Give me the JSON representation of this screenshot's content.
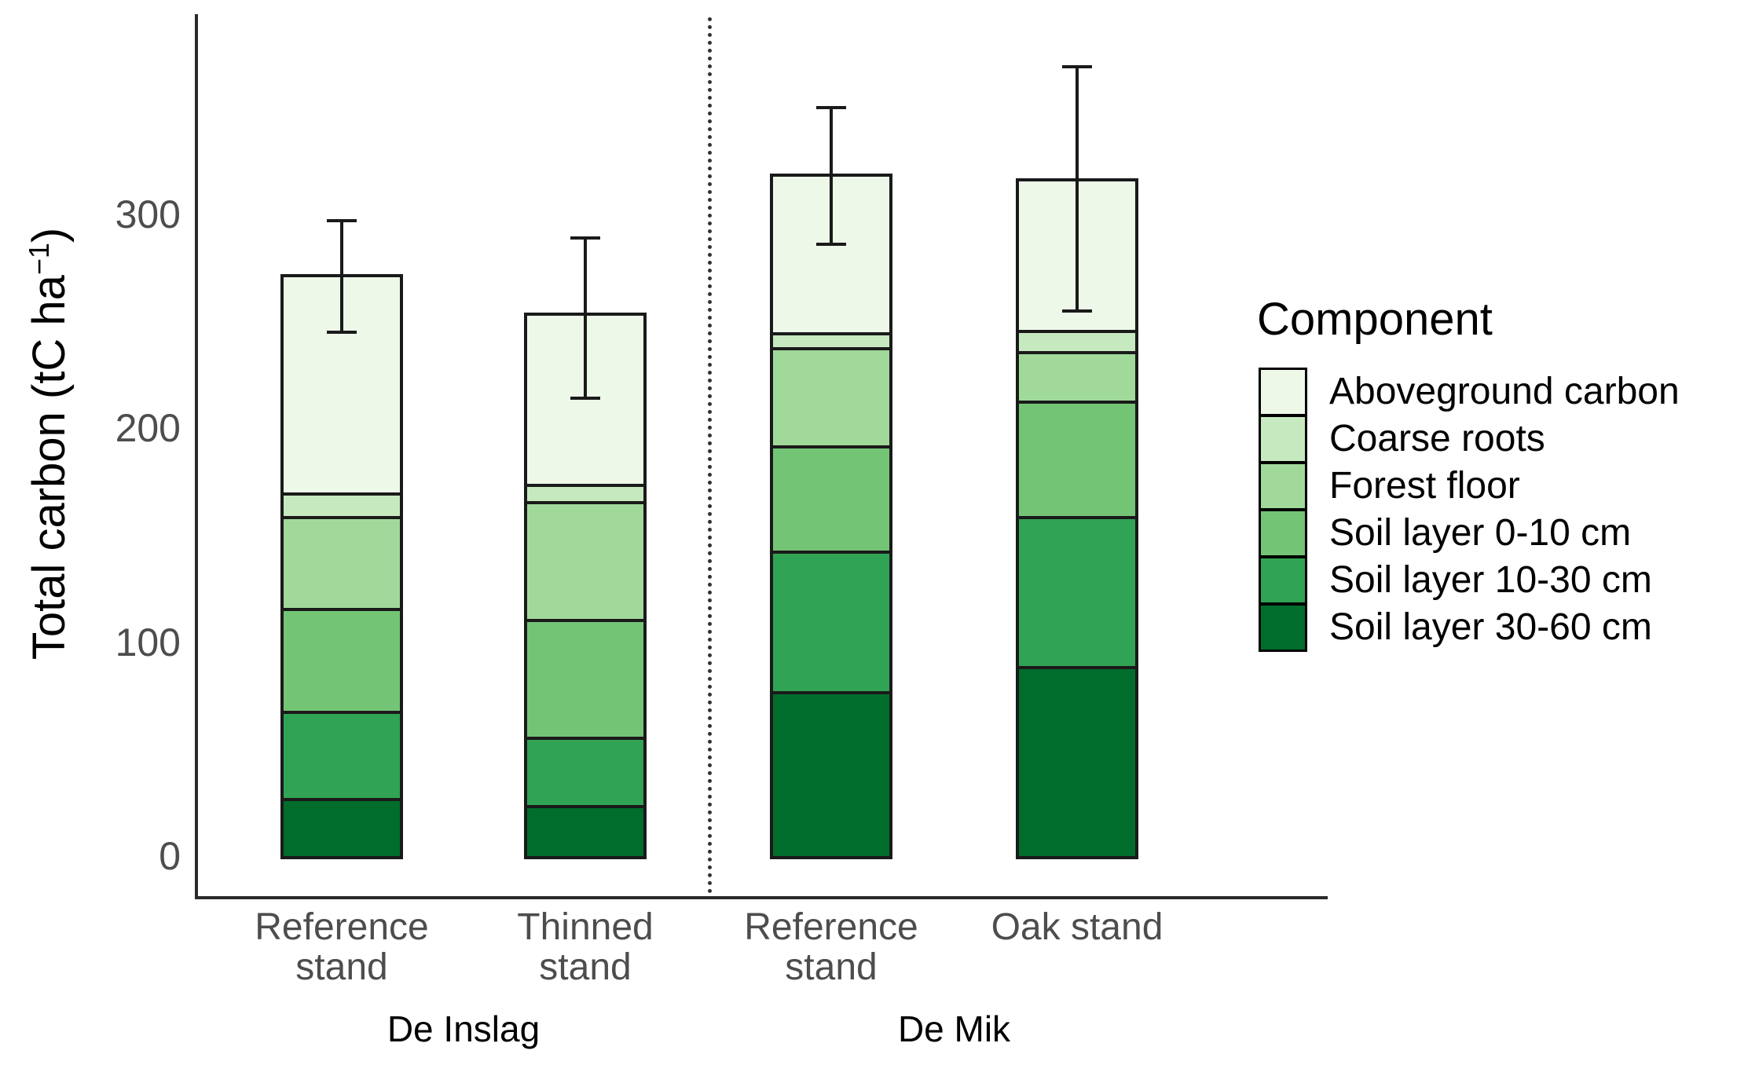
{
  "colors": {
    "background": "#FFFFFF",
    "axis_line": "#2B2B2B",
    "tick_text": "#4D4D4D",
    "label_text": "#000000",
    "bar_border": "#1A1A1A",
    "error_bar": "#1A1A1A"
  },
  "chart_data": {
    "type": "bar",
    "stacked": true,
    "title": "",
    "xlabel": "",
    "ylabel": "Total carbon (tC ha⁻¹)",
    "ylabel_parts": {
      "main": "Total carbon (tC ha",
      "sup": "−1",
      "close": ")"
    },
    "ylim": [
      0,
      380
    ],
    "yticks": [
      0,
      100,
      200,
      300
    ],
    "grid": false,
    "legend_title": "Component",
    "legend_position": "right",
    "series": [
      {
        "name": "Aboveground carbon",
        "color": "#EDF8E9"
      },
      {
        "name": "Coarse roots",
        "color": "#C7E9C0"
      },
      {
        "name": "Forest floor",
        "color": "#A1D99B"
      },
      {
        "name": "Soil layer 0-10 cm",
        "color": "#74C476"
      },
      {
        "name": "Soil layer 10-30 cm",
        "color": "#31A354"
      },
      {
        "name": "Soil layer 30-60 cm",
        "color": "#006D2C"
      }
    ],
    "site_labels": [
      "De Inslag",
      "De Mik"
    ],
    "separator": {
      "style": "dotted",
      "between": [
        "De Inslag",
        "De Mik"
      ]
    },
    "bars": [
      {
        "site": "De Inslag",
        "label": "Reference stand",
        "label_lines": [
          "Reference",
          "stand"
        ],
        "segments": {
          "Aboveground carbon": 102,
          "Coarse roots": 11,
          "Forest floor": 43,
          "Soil layer 0-10 cm": 48,
          "Soil layer 10-30 cm": 41,
          "Soil layer 30-60 cm": 27
        },
        "total": 272,
        "error_low": 245,
        "error_high": 297
      },
      {
        "site": "De Inslag",
        "label": "Thinned stand",
        "label_lines": [
          "Thinned",
          "stand"
        ],
        "segments": {
          "Aboveground carbon": 80,
          "Coarse roots": 8,
          "Forest floor": 55,
          "Soil layer 0-10 cm": 55,
          "Soil layer 10-30 cm": 32,
          "Soil layer 30-60 cm": 24
        },
        "total": 254,
        "error_low": 214,
        "error_high": 289
      },
      {
        "site": "De Mik",
        "label": "Reference stand",
        "label_lines": [
          "Reference",
          "stand"
        ],
        "segments": {
          "Aboveground carbon": 74,
          "Coarse roots": 7,
          "Forest floor": 46,
          "Soil layer 0-10 cm": 49,
          "Soil layer 10-30 cm": 66,
          "Soil layer 30-60 cm": 77
        },
        "total": 319,
        "error_low": 286,
        "error_high": 350
      },
      {
        "site": "De Mik",
        "label": "Oak stand",
        "label_lines": [
          "Oak stand"
        ],
        "segments": {
          "Aboveground carbon": 71,
          "Coarse roots": 10,
          "Forest floor": 23,
          "Soil layer 0-10 cm": 54,
          "Soil layer 10-30 cm": 70,
          "Soil layer 30-60 cm": 89
        },
        "total": 317,
        "error_low": 255,
        "error_high": 369
      }
    ]
  }
}
